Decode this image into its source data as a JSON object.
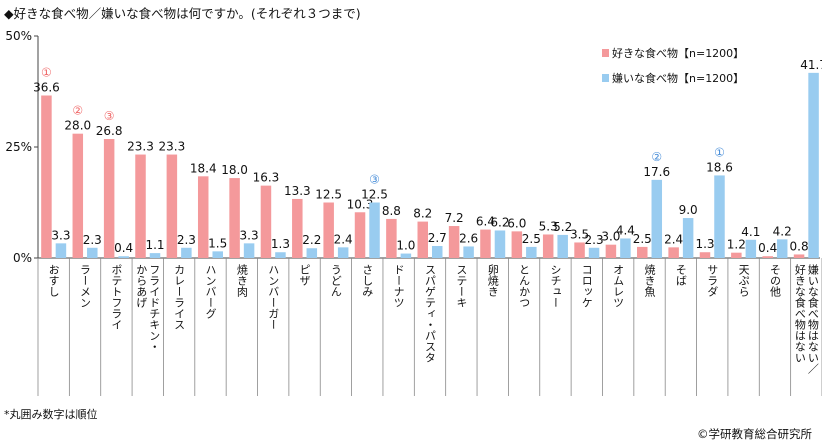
{
  "title": "◆好きな食べ物／嫌いな食べ物は何ですか。(それぞれ３つまで)",
  "footnote": "*丸囲み数字は順位",
  "credit": "©学研教育総合研究所",
  "chart_data": {
    "type": "bar",
    "ylim": [
      0,
      50
    ],
    "yticks": [
      "0%",
      "25%",
      "50%"
    ],
    "grid": false,
    "legend_position": "top-right",
    "categories": [
      "おすし",
      "ラーメン",
      "ポテトフライ",
      "フライドチキン・からあげ",
      "カレーライス",
      "ハンバーグ",
      "焼き肉",
      "ハンバーガー",
      "ピザ",
      "うどん",
      "さしみ",
      "ドーナツ",
      "スパゲティ・パスタ",
      "ステーキ",
      "卵焼き",
      "とんかつ",
      "シチュー",
      "コロッケ",
      "オムレツ",
      "焼き魚",
      "そば",
      "サラダ",
      "天ぷら",
      "その他",
      "嫌いな食べ物はない／好きな食べ物はない"
    ],
    "category_lines": [
      [
        "おすし"
      ],
      [
        "ラーメン"
      ],
      [
        "ポテトフライ"
      ],
      [
        "フライドチキン・",
        "からあげ"
      ],
      [
        "カレーライス"
      ],
      [
        "ハンバーグ"
      ],
      [
        "焼き肉"
      ],
      [
        "ハンバーガー"
      ],
      [
        "ピザ"
      ],
      [
        "うどん"
      ],
      [
        "さしみ"
      ],
      [
        "ドーナツ"
      ],
      [
        "スパゲティ・パスタ"
      ],
      [
        "ステーキ"
      ],
      [
        "卵焼き"
      ],
      [
        "とんかつ"
      ],
      [
        "シチュー"
      ],
      [
        "コロッケ"
      ],
      [
        "オムレツ"
      ],
      [
        "焼き魚"
      ],
      [
        "そば"
      ],
      [
        "サラダ"
      ],
      [
        "天ぷら"
      ],
      [
        "その他"
      ],
      [
        "嫌いな食べ物はない／",
        "好きな食べ物はない"
      ]
    ],
    "series": [
      {
        "name": "好きな食べ物【n=1200】",
        "color": "#f4999b",
        "values": [
          36.6,
          28.0,
          26.8,
          23.3,
          23.3,
          18.4,
          18.0,
          16.3,
          13.3,
          12.5,
          10.3,
          8.8,
          8.2,
          7.2,
          6.4,
          6.0,
          5.3,
          3.5,
          3.0,
          2.5,
          2.4,
          1.3,
          1.2,
          0.4,
          0.8
        ],
        "labels": [
          "36.6",
          "28.0",
          "26.8",
          "23.3",
          "23.3",
          "18.4",
          "18.0",
          "16.3",
          "13.3",
          "12.5",
          "10.3",
          "8.8",
          "8.2",
          "7.2",
          "6.4",
          "6.0",
          "5.3",
          "3.5",
          "3.0",
          "2.5",
          "2.4",
          "1.3",
          "1.2",
          "0.4",
          "0.8"
        ]
      },
      {
        "name": "嫌いな食べ物【n=1200】",
        "color": "#99ccf0",
        "values": [
          3.3,
          2.3,
          0.4,
          1.1,
          2.3,
          1.5,
          3.3,
          1.3,
          2.2,
          2.4,
          12.5,
          1.0,
          2.7,
          2.6,
          6.2,
          2.5,
          5.2,
          2.3,
          4.4,
          17.6,
          9.0,
          18.6,
          4.1,
          4.2,
          41.7
        ],
        "labels": [
          "3.3",
          "2.3",
          "0.4",
          "1.1",
          "2.3",
          "1.5",
          "3.3",
          "1.3",
          "2.2",
          "2.4",
          "12.5",
          "1.0",
          "2.7",
          "2.6",
          "6.2",
          "2.5",
          "5.2",
          "2.3",
          "4.4",
          "17.6",
          "9.0",
          "18.6",
          "4.1",
          "4.2",
          "41.7"
        ]
      }
    ],
    "rank_annotations": [
      {
        "series": 0,
        "category": 0,
        "text": "①",
        "color": "#f06a6a"
      },
      {
        "series": 0,
        "category": 1,
        "text": "②",
        "color": "#f06a6a"
      },
      {
        "series": 0,
        "category": 2,
        "text": "③",
        "color": "#f06a6a"
      },
      {
        "series": 1,
        "category": 10,
        "text": "③",
        "color": "#4a8fd9"
      },
      {
        "series": 1,
        "category": 19,
        "text": "②",
        "color": "#4a8fd9"
      },
      {
        "series": 1,
        "category": 21,
        "text": "①",
        "color": "#4a8fd9"
      }
    ]
  }
}
